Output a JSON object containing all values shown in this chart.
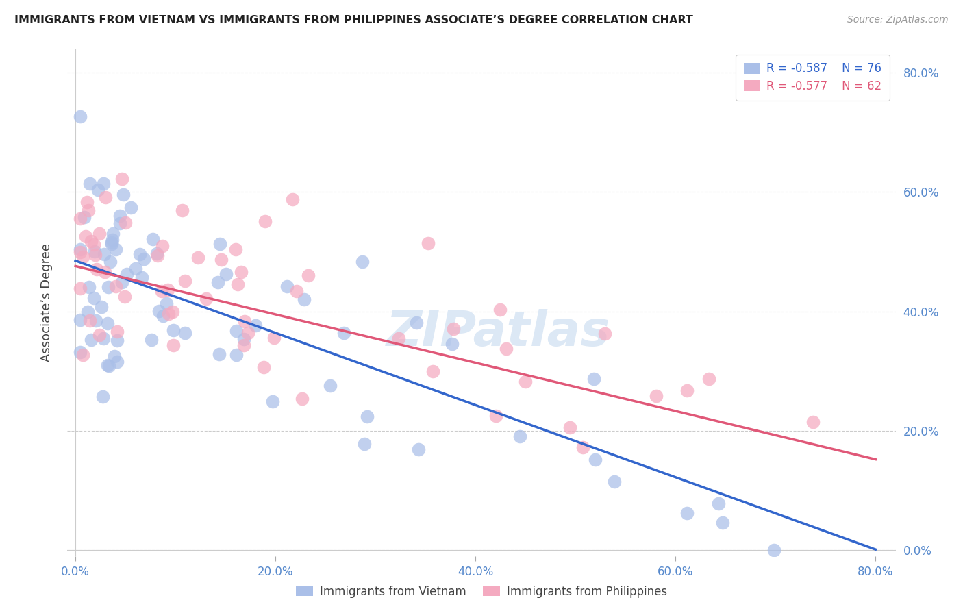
{
  "title": "IMMIGRANTS FROM VIETNAM VS IMMIGRANTS FROM PHILIPPINES ASSOCIATE’S DEGREE CORRELATION CHART",
  "source": "Source: ZipAtlas.com",
  "ylabel": "Associate’s Degree",
  "vietnam_color": "#aabfe8",
  "philippines_color": "#f4aac0",
  "vietnam_line_color": "#3366cc",
  "philippines_line_color": "#e05878",
  "vietnam_R": "-0.587",
  "vietnam_N": "76",
  "philippines_R": "-0.577",
  "philippines_N": "62",
  "legend_label_vietnam": "Immigrants from Vietnam",
  "legend_label_philippines": "Immigrants from Philippines",
  "watermark_text": "ZIPatlas",
  "tick_color": "#5588cc",
  "grid_color": "#cccccc",
  "xlim": [
    0.0,
    0.8
  ],
  "ylim": [
    0.0,
    0.8
  ],
  "xticks": [
    0.0,
    0.2,
    0.4,
    0.6,
    0.8
  ],
  "yticks": [
    0.0,
    0.2,
    0.4,
    0.6,
    0.8
  ],
  "vietnam_intercept": 0.485,
  "vietnam_slope": -0.605,
  "philippines_intercept": 0.476,
  "philippines_slope": -0.405
}
